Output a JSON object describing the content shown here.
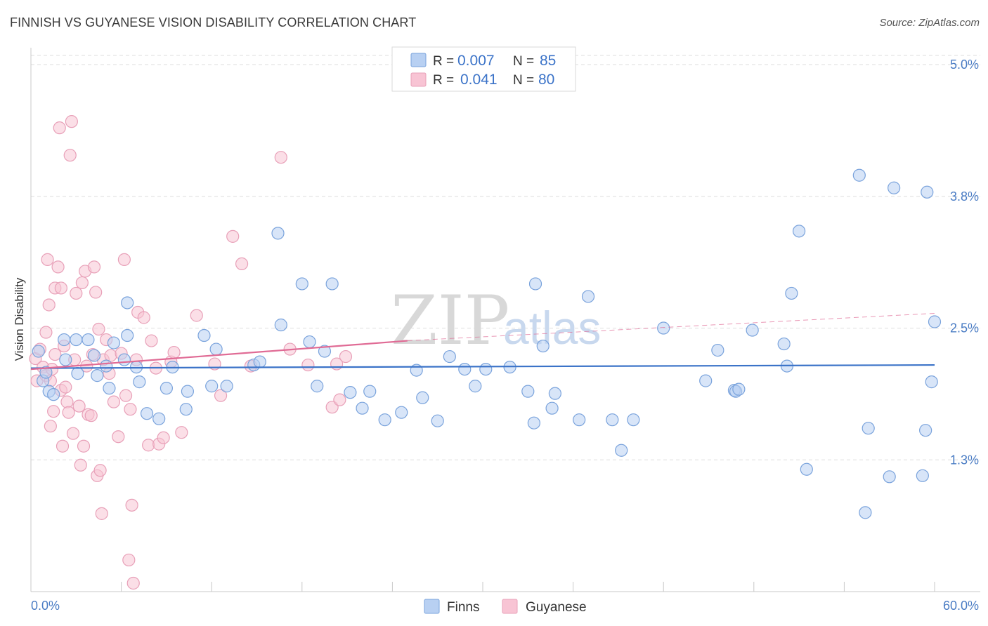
{
  "header": {
    "title": "FINNISH VS GUYANESE VISION DISABILITY CORRELATION CHART",
    "source": "Source: ZipAtlas.com"
  },
  "watermark": {
    "zip": "ZIP",
    "atlas": "atlas"
  },
  "colors": {
    "finns_fill": "#b8d0f2",
    "finns_stroke": "#7aa3dc",
    "finns_line": "#3b73c8",
    "guyanese_fill": "#f8c4d4",
    "guyanese_stroke": "#e8a0b8",
    "guyanese_line": "#e06b95",
    "grid": "#dddddd",
    "axis_text": "#4a7cc4"
  },
  "legend": {
    "items": [
      {
        "r_label": "R =",
        "r_value": "0.007",
        "n_label": "N =",
        "n_value": "85"
      },
      {
        "r_label": "R =",
        "r_value": "0.041",
        "n_label": "N =",
        "n_value": "80"
      }
    ]
  },
  "bottom_legend": {
    "finns": "Finns",
    "guyanese": "Guyanese"
  },
  "chart_data": {
    "type": "scatter",
    "title": "FINNISH VS GUYANESE VISION DISABILITY CORRELATION CHART",
    "xlabel": "",
    "ylabel": "Vision Disability",
    "xlim": [
      0,
      60
    ],
    "ylim": [
      0,
      5.2
    ],
    "x_tick_labels": [
      "0.0%",
      "60.0%"
    ],
    "y_ticks": [
      1.25,
      2.5,
      3.75,
      5.0
    ],
    "y_tick_labels": [
      "1.3%",
      "2.5%",
      "3.8%",
      "5.0%"
    ],
    "grid": true,
    "series": [
      {
        "name": "Finns",
        "r": 0.007,
        "n": 85,
        "trend": {
          "x": [
            0,
            60
          ],
          "y": [
            2.12,
            2.15
          ],
          "dashed_to": null
        },
        "points": [
          [
            0.5,
            2.28
          ],
          [
            0.8,
            2.0
          ],
          [
            1.0,
            2.08
          ],
          [
            1.2,
            1.9
          ],
          [
            1.5,
            1.87
          ],
          [
            2.2,
            2.39
          ],
          [
            2.3,
            2.2
          ],
          [
            3.0,
            2.39
          ],
          [
            3.1,
            2.07
          ],
          [
            3.8,
            2.39
          ],
          [
            4.2,
            2.24
          ],
          [
            4.4,
            2.05
          ],
          [
            5.0,
            2.14
          ],
          [
            5.2,
            1.93
          ],
          [
            5.5,
            2.36
          ],
          [
            6.2,
            2.2
          ],
          [
            6.4,
            2.43
          ],
          [
            6.4,
            2.74
          ],
          [
            7.0,
            2.13
          ],
          [
            7.2,
            1.99
          ],
          [
            7.7,
            1.69
          ],
          [
            8.5,
            1.64
          ],
          [
            9.0,
            1.93
          ],
          [
            9.4,
            2.13
          ],
          [
            10.3,
            1.73
          ],
          [
            10.4,
            1.9
          ],
          [
            11.5,
            2.43
          ],
          [
            12.0,
            1.95
          ],
          [
            12.3,
            2.3
          ],
          [
            13.0,
            1.95
          ],
          [
            14.8,
            2.15
          ],
          [
            15.2,
            2.18
          ],
          [
            16.4,
            3.4
          ],
          [
            16.6,
            2.53
          ],
          [
            18.0,
            2.92
          ],
          [
            18.5,
            2.37
          ],
          [
            19.0,
            1.95
          ],
          [
            19.5,
            2.28
          ],
          [
            20.0,
            2.92
          ],
          [
            21.2,
            1.89
          ],
          [
            22.0,
            1.74
          ],
          [
            22.5,
            1.9
          ],
          [
            23.5,
            1.63
          ],
          [
            24.6,
            1.7
          ],
          [
            25.6,
            2.1
          ],
          [
            26.0,
            1.84
          ],
          [
            27.0,
            1.62
          ],
          [
            27.8,
            2.23
          ],
          [
            28.8,
            2.11
          ],
          [
            29.5,
            1.95
          ],
          [
            30.2,
            2.11
          ],
          [
            31.8,
            2.13
          ],
          [
            33.0,
            1.9
          ],
          [
            33.4,
            1.6
          ],
          [
            33.5,
            2.92
          ],
          [
            34.0,
            2.33
          ],
          [
            34.6,
            1.74
          ],
          [
            34.8,
            1.88
          ],
          [
            36.4,
            1.63
          ],
          [
            37.0,
            2.8
          ],
          [
            38.6,
            1.63
          ],
          [
            39.2,
            1.34
          ],
          [
            40.0,
            1.63
          ],
          [
            42.0,
            2.5
          ],
          [
            44.8,
            2.0
          ],
          [
            45.6,
            2.29
          ],
          [
            46.7,
            1.91
          ],
          [
            46.8,
            1.9
          ],
          [
            47.0,
            1.92
          ],
          [
            47.9,
            2.48
          ],
          [
            50.0,
            2.35
          ],
          [
            50.2,
            2.14
          ],
          [
            50.5,
            2.83
          ],
          [
            51.0,
            3.42
          ],
          [
            51.5,
            1.16
          ],
          [
            55.0,
            3.95
          ],
          [
            55.4,
            0.75
          ],
          [
            55.6,
            1.55
          ],
          [
            57.0,
            1.09
          ],
          [
            57.3,
            3.83
          ],
          [
            59.2,
            1.1
          ],
          [
            59.4,
            1.53
          ],
          [
            59.5,
            3.79
          ],
          [
            59.8,
            1.99
          ],
          [
            60.0,
            2.56
          ]
        ]
      },
      {
        "name": "Guyanese",
        "r": 0.041,
        "n": 80,
        "trend": {
          "x": [
            0,
            25
          ],
          "y": [
            2.11,
            2.38
          ],
          "dashed_to": [
            60,
            2.64
          ]
        },
        "points": [
          [
            0.3,
            2.21
          ],
          [
            0.4,
            2.0
          ],
          [
            0.6,
            2.3
          ],
          [
            0.8,
            2.13
          ],
          [
            1.0,
            2.05
          ],
          [
            1.0,
            2.46
          ],
          [
            1.1,
            3.15
          ],
          [
            1.2,
            2.72
          ],
          [
            1.3,
            1.57
          ],
          [
            1.3,
            2.0
          ],
          [
            1.4,
            2.11
          ],
          [
            1.5,
            1.71
          ],
          [
            1.6,
            2.88
          ],
          [
            1.6,
            2.25
          ],
          [
            1.8,
            3.08
          ],
          [
            1.9,
            4.4
          ],
          [
            2.0,
            1.91
          ],
          [
            2.0,
            2.88
          ],
          [
            2.1,
            1.38
          ],
          [
            2.2,
            2.33
          ],
          [
            2.3,
            1.94
          ],
          [
            2.4,
            1.8
          ],
          [
            2.5,
            1.7
          ],
          [
            2.6,
            4.14
          ],
          [
            2.7,
            4.46
          ],
          [
            2.8,
            1.5
          ],
          [
            2.9,
            2.2
          ],
          [
            3.0,
            2.83
          ],
          [
            3.2,
            1.76
          ],
          [
            3.3,
            1.2
          ],
          [
            3.4,
            2.93
          ],
          [
            3.5,
            1.38
          ],
          [
            3.6,
            3.04
          ],
          [
            3.7,
            2.14
          ],
          [
            3.8,
            1.68
          ],
          [
            4.0,
            1.67
          ],
          [
            4.1,
            2.25
          ],
          [
            4.2,
            3.08
          ],
          [
            4.3,
            2.84
          ],
          [
            4.4,
            1.1
          ],
          [
            4.5,
            2.49
          ],
          [
            4.6,
            1.15
          ],
          [
            4.7,
            0.74
          ],
          [
            4.8,
            2.2
          ],
          [
            5.0,
            2.39
          ],
          [
            5.2,
            2.07
          ],
          [
            5.3,
            2.24
          ],
          [
            5.5,
            1.8
          ],
          [
            5.8,
            1.47
          ],
          [
            6.0,
            2.26
          ],
          [
            6.2,
            3.15
          ],
          [
            6.3,
            1.86
          ],
          [
            6.5,
            0.3
          ],
          [
            6.6,
            1.73
          ],
          [
            6.7,
            0.82
          ],
          [
            6.8,
            0.08
          ],
          [
            7.0,
            2.2
          ],
          [
            7.1,
            2.65
          ],
          [
            7.5,
            2.6
          ],
          [
            7.8,
            1.39
          ],
          [
            8.0,
            2.38
          ],
          [
            8.3,
            2.12
          ],
          [
            8.5,
            1.4
          ],
          [
            8.8,
            1.46
          ],
          [
            9.3,
            2.18
          ],
          [
            9.5,
            2.27
          ],
          [
            10.0,
            1.51
          ],
          [
            11.0,
            2.62
          ],
          [
            12.2,
            2.16
          ],
          [
            12.6,
            1.86
          ],
          [
            13.4,
            3.37
          ],
          [
            14.0,
            3.11
          ],
          [
            14.6,
            2.14
          ],
          [
            16.6,
            4.12
          ],
          [
            17.2,
            2.3
          ],
          [
            18.4,
            2.15
          ],
          [
            20.0,
            1.75
          ],
          [
            20.3,
            2.16
          ],
          [
            20.5,
            1.82
          ],
          [
            20.9,
            2.23
          ]
        ]
      }
    ]
  }
}
